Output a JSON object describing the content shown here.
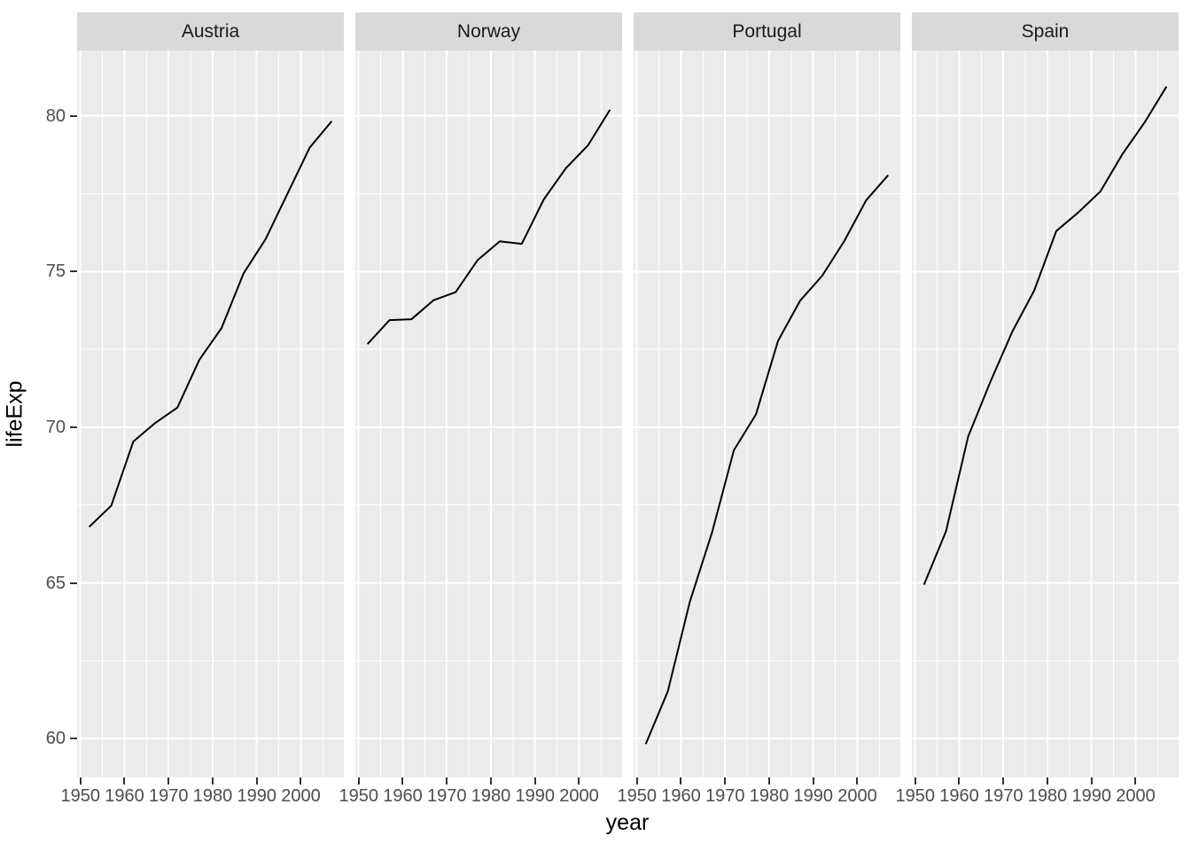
{
  "chart_data": {
    "type": "line",
    "title": "",
    "xlabel": "year",
    "ylabel": "lifeExp",
    "faceted_by": "country",
    "facet_strip_position": "top",
    "legend": "none",
    "grid": true,
    "x": [
      1952,
      1957,
      1962,
      1967,
      1972,
      1977,
      1982,
      1987,
      1992,
      1997,
      2002,
      2007
    ],
    "series": [
      {
        "name": "Austria",
        "values": [
          66.8,
          67.48,
          69.54,
          70.14,
          70.63,
          72.17,
          73.18,
          74.94,
          76.04,
          77.51,
          78.98,
          79.829
        ]
      },
      {
        "name": "Norway",
        "values": [
          72.67,
          73.44,
          73.47,
          74.08,
          74.34,
          75.37,
          75.97,
          75.89,
          77.32,
          78.32,
          79.05,
          80.196
        ]
      },
      {
        "name": "Portugal",
        "values": [
          59.82,
          61.51,
          64.39,
          66.6,
          69.26,
          70.41,
          72.77,
          74.06,
          74.86,
          75.97,
          77.29,
          78.098
        ]
      },
      {
        "name": "Spain",
        "values": [
          64.94,
          66.66,
          69.69,
          71.44,
          73.06,
          74.39,
          76.3,
          76.9,
          77.57,
          78.77,
          79.78,
          80.941
        ]
      }
    ],
    "xlim": [
      1949.25,
      2009.75
    ],
    "ylim": [
      58.75,
      82.1
    ],
    "x_ticks": [
      1950,
      1960,
      1970,
      1980,
      1990,
      2000
    ],
    "x_minor_ticks": [
      1955,
      1965,
      1975,
      1985,
      1995,
      2005
    ],
    "y_ticks": [
      60,
      65,
      70,
      75,
      80
    ],
    "y_minor_ticks": [
      62.5,
      67.5,
      72.5,
      77.5
    ],
    "style": {
      "panel_background": "#ebebeb",
      "strip_background": "#d9d9d9",
      "strip_text_color": "#1a1a1a",
      "grid_color": "#ffffff",
      "line_color": "#000000",
      "tick_label_color": "#4d4d4d",
      "tick_mark_color": "#333333",
      "axis_title_color": "#000000"
    }
  }
}
